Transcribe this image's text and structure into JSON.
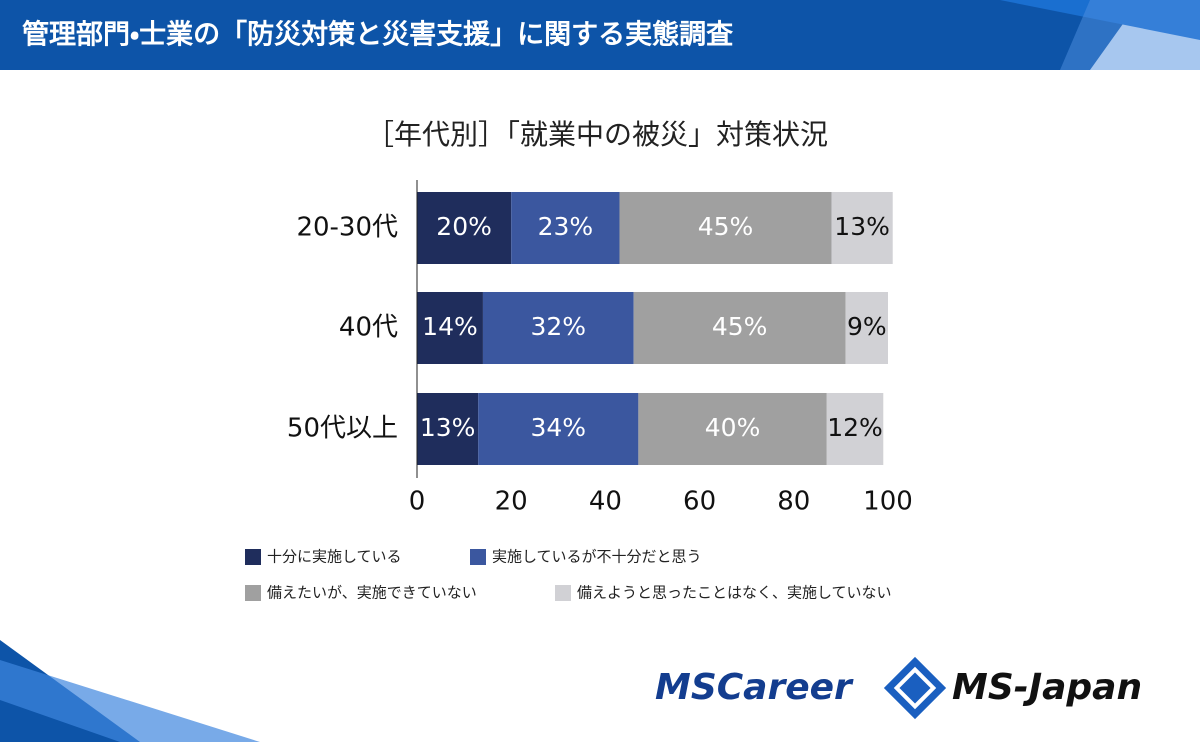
{
  "header_title": "管理部門・士業の「防災対策と災害支援」に関する実態調査",
  "chart_data": {
    "type": "bar",
    "orientation": "horizontal",
    "stacked": true,
    "title": "［年代別］「就業中の被災」対策状況",
    "categories": [
      "20-30代",
      "40代",
      "50代以上"
    ],
    "series": [
      {
        "name": "十分に実施している",
        "color": "#1f2d5c",
        "label_color": "#ffffff",
        "values": [
          20,
          14,
          13
        ],
        "value_labels": [
          "20%",
          "14%",
          "13%"
        ]
      },
      {
        "name": "実施しているが不十分だと思う",
        "color": "#3b579f",
        "label_color": "#ffffff",
        "values": [
          23,
          32,
          34
        ],
        "value_labels": [
          "23%",
          "32%",
          "34%"
        ]
      },
      {
        "name": "備えたいが、実施できていない",
        "color": "#a0a0a0",
        "label_color": "#ffffff",
        "values": [
          45,
          45,
          40
        ],
        "value_labels": [
          "45%",
          "45%",
          "40%"
        ]
      },
      {
        "name": "備えようと思ったことはなく、実施していない",
        "color": "#d1d1d5",
        "label_color": "#111111",
        "values": [
          13,
          9,
          12
        ],
        "value_labels": [
          "13%",
          "9%",
          "12%"
        ]
      }
    ],
    "xlim": [
      0,
      100
    ],
    "xticks": [
      0,
      20,
      40,
      60,
      80,
      100
    ],
    "grid": false,
    "legend": "bottom"
  },
  "logos": [
    "MSCareer",
    "MS-Japan"
  ]
}
